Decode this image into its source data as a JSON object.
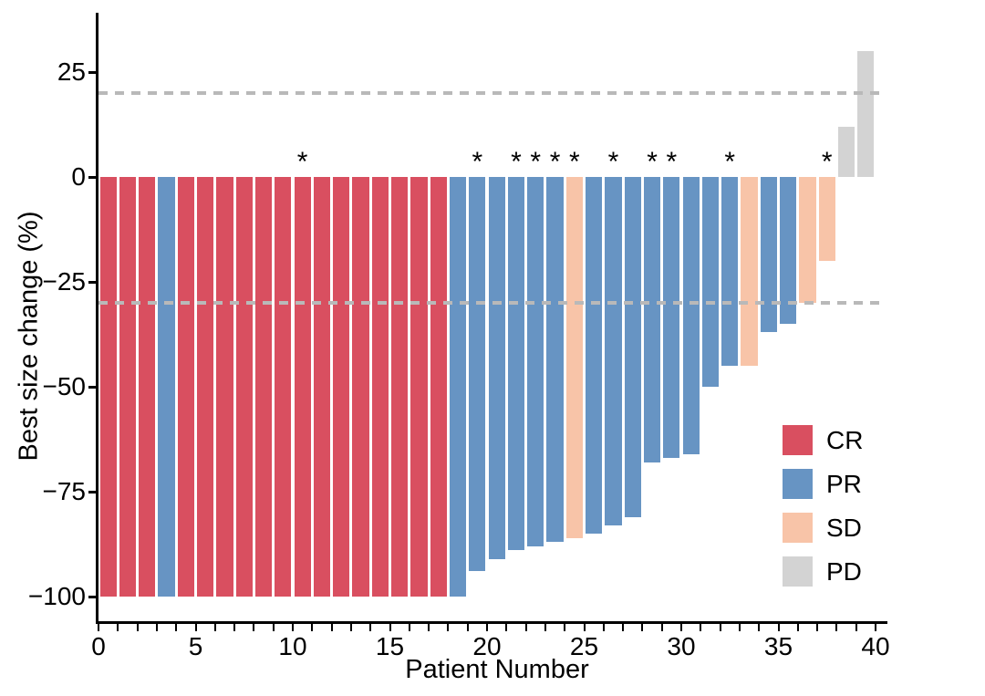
{
  "chart_data": {
    "type": "bar",
    "subtype": "waterfall",
    "title": "",
    "xlabel": "Patient Number",
    "ylabel": "Best size change (%)",
    "ylim": [
      -105,
      35
    ],
    "xlim": [
      0,
      40
    ],
    "grid": "off",
    "legend_position": "right-lower",
    "reference_lines": [
      20,
      -30
    ],
    "reference_line_color": "#b9b9b9",
    "colors": {
      "CR": "#d94f60",
      "PR": "#6794c3",
      "SD": "#f8c4a8",
      "PD": "#d3d3d3"
    },
    "legend": [
      {
        "label": "CR",
        "color": "#d94f60"
      },
      {
        "label": "PR",
        "color": "#6794c3"
      },
      {
        "label": "SD",
        "color": "#f8c4a8"
      },
      {
        "label": "PD",
        "color": "#d3d3d3"
      }
    ],
    "x_ticks": [
      {
        "v": 0,
        "label": "0"
      },
      {
        "v": 5,
        "label": "5"
      },
      {
        "v": 10,
        "label": "10"
      },
      {
        "v": 15,
        "label": "15"
      },
      {
        "v": 20,
        "label": "20"
      },
      {
        "v": 25,
        "label": "25"
      },
      {
        "v": 30,
        "label": "30"
      },
      {
        "v": 35,
        "label": "35"
      },
      {
        "v": 40,
        "label": "40"
      }
    ],
    "x_minor_tick_every": 1,
    "y_ticks": [
      {
        "v": 25,
        "label": "25"
      },
      {
        "v": 0,
        "label": "0"
      },
      {
        "v": -25,
        "label": "−25"
      },
      {
        "v": -50,
        "label": "−50"
      },
      {
        "v": -75,
        "label": "−75"
      },
      {
        "v": -100,
        "label": "−100"
      }
    ],
    "annotation_symbol": "*",
    "patients": [
      {
        "n": 1,
        "value": -100,
        "response": "CR",
        "star": false
      },
      {
        "n": 2,
        "value": -100,
        "response": "CR",
        "star": false
      },
      {
        "n": 3,
        "value": -100,
        "response": "CR",
        "star": false
      },
      {
        "n": 4,
        "value": -100,
        "response": "PR",
        "star": false
      },
      {
        "n": 5,
        "value": -100,
        "response": "CR",
        "star": false
      },
      {
        "n": 6,
        "value": -100,
        "response": "CR",
        "star": false
      },
      {
        "n": 7,
        "value": -100,
        "response": "CR",
        "star": false
      },
      {
        "n": 8,
        "value": -100,
        "response": "CR",
        "star": false
      },
      {
        "n": 9,
        "value": -100,
        "response": "CR",
        "star": false
      },
      {
        "n": 10,
        "value": -100,
        "response": "CR",
        "star": false
      },
      {
        "n": 11,
        "value": -100,
        "response": "CR",
        "star": true
      },
      {
        "n": 12,
        "value": -100,
        "response": "CR",
        "star": false
      },
      {
        "n": 13,
        "value": -100,
        "response": "CR",
        "star": false
      },
      {
        "n": 14,
        "value": -100,
        "response": "CR",
        "star": false
      },
      {
        "n": 15,
        "value": -100,
        "response": "CR",
        "star": false
      },
      {
        "n": 16,
        "value": -100,
        "response": "CR",
        "star": false
      },
      {
        "n": 17,
        "value": -100,
        "response": "CR",
        "star": false
      },
      {
        "n": 18,
        "value": -100,
        "response": "CR",
        "star": false
      },
      {
        "n": 19,
        "value": -100,
        "response": "PR",
        "star": false
      },
      {
        "n": 20,
        "value": -94,
        "response": "PR",
        "star": true
      },
      {
        "n": 21,
        "value": -91,
        "response": "PR",
        "star": false
      },
      {
        "n": 22,
        "value": -89,
        "response": "PR",
        "star": true
      },
      {
        "n": 23,
        "value": -88,
        "response": "PR",
        "star": true
      },
      {
        "n": 24,
        "value": -87,
        "response": "PR",
        "star": true
      },
      {
        "n": 25,
        "value": -86,
        "response": "SD",
        "star": true
      },
      {
        "n": 26,
        "value": -85,
        "response": "PR",
        "star": false
      },
      {
        "n": 27,
        "value": -83,
        "response": "PR",
        "star": true
      },
      {
        "n": 28,
        "value": -81,
        "response": "PR",
        "star": false
      },
      {
        "n": 29,
        "value": -68,
        "response": "PR",
        "star": true
      },
      {
        "n": 30,
        "value": -67,
        "response": "PR",
        "star": true
      },
      {
        "n": 31,
        "value": -66,
        "response": "PR",
        "star": false
      },
      {
        "n": 32,
        "value": -50,
        "response": "PR",
        "star": false
      },
      {
        "n": 33,
        "value": -45,
        "response": "PR",
        "star": true
      },
      {
        "n": 34,
        "value": -45,
        "response": "SD",
        "star": false
      },
      {
        "n": 35,
        "value": -37,
        "response": "PR",
        "star": false
      },
      {
        "n": 36,
        "value": -35,
        "response": "PR",
        "star": false
      },
      {
        "n": 37,
        "value": -30,
        "response": "SD",
        "star": false
      },
      {
        "n": 38,
        "value": -20,
        "response": "SD",
        "star": true
      },
      {
        "n": 39,
        "value": 12,
        "response": "PD",
        "star": false
      },
      {
        "n": 40,
        "value": 30,
        "response": "PD",
        "star": false
      }
    ]
  }
}
